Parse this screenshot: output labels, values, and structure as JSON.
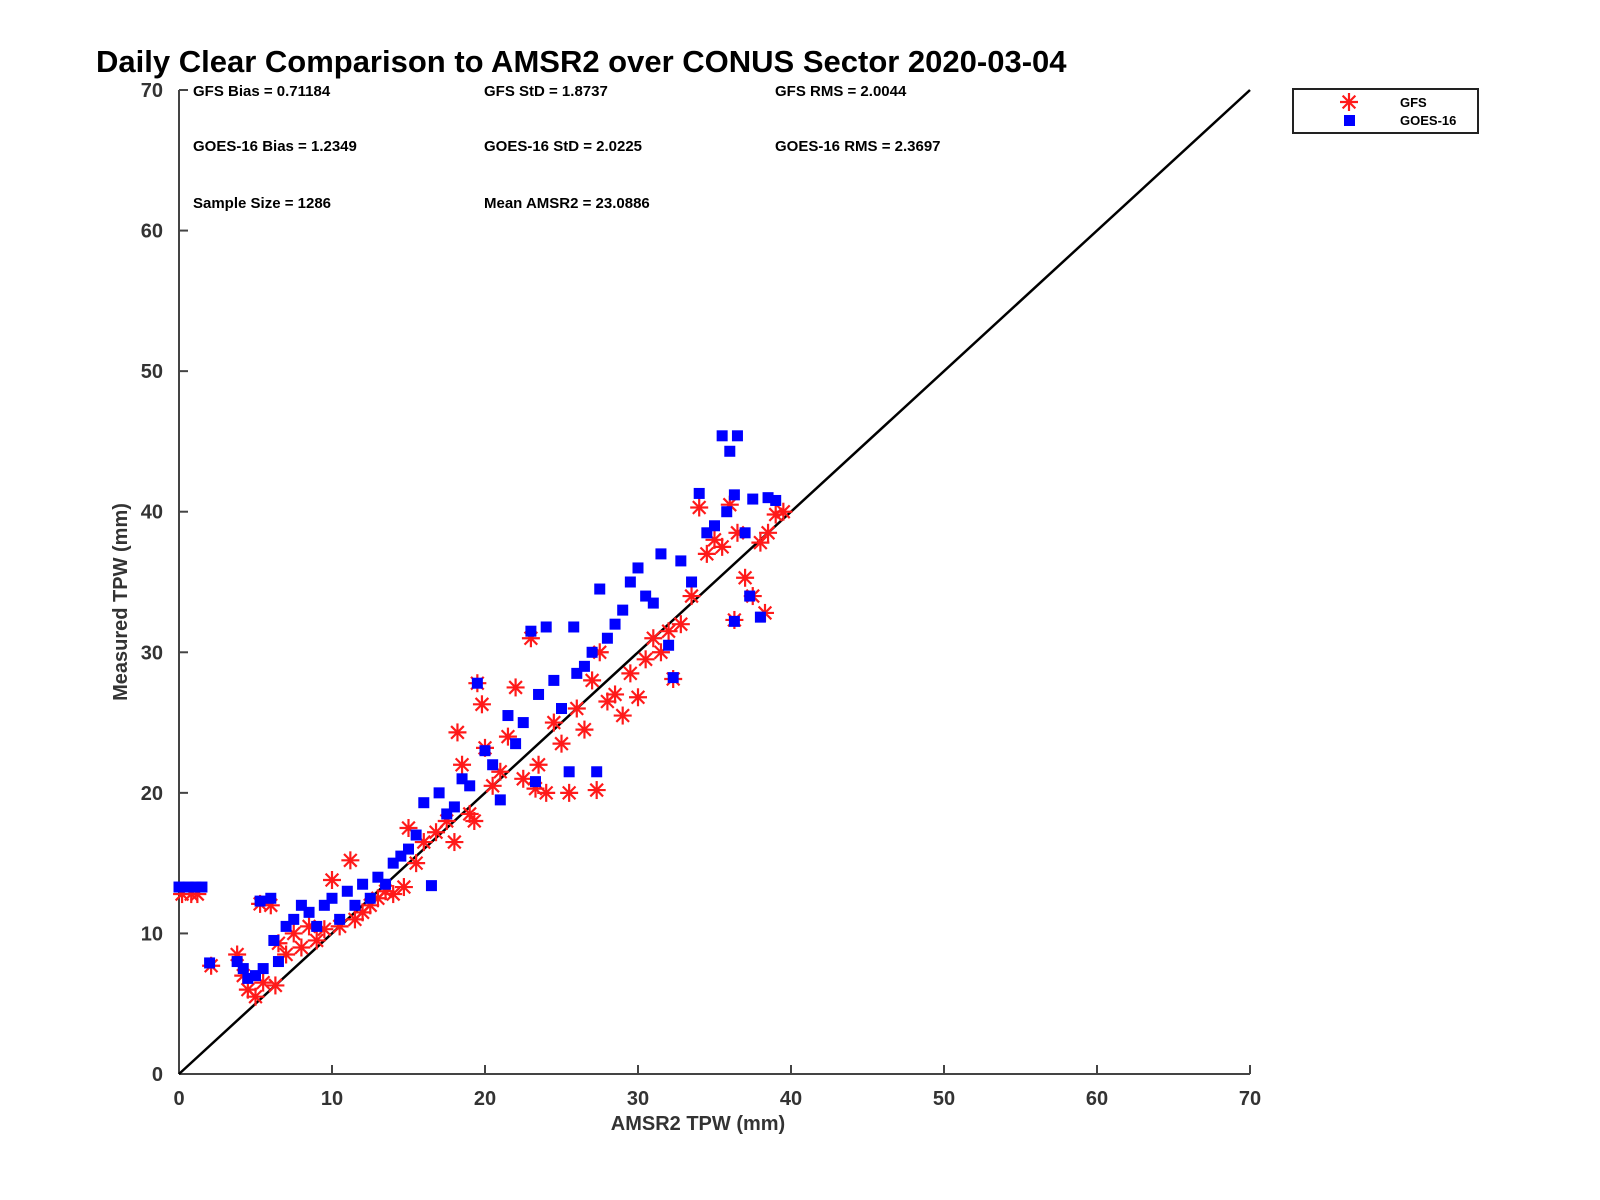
{
  "chart_data": {
    "type": "scatter",
    "title": "Daily Clear Comparison to AMSR2 over CONUS Sector 2020-03-04",
    "xlabel": "AMSR2 TPW (mm)",
    "ylabel": "Measured TPW (mm)",
    "xlim": [
      0,
      70
    ],
    "ylim": [
      0,
      70
    ],
    "xticks": [
      "0",
      "10",
      "20",
      "30",
      "40",
      "50",
      "60",
      "70"
    ],
    "yticks": [
      "0",
      "10",
      "20",
      "30",
      "40",
      "50",
      "60",
      "70"
    ],
    "grid": false,
    "legend_position": "top-right (outside plot)",
    "reference_line": {
      "x": [
        0,
        70
      ],
      "y": [
        0,
        70
      ]
    },
    "annotations": [
      "GFS Bias = 0.71184",
      "GFS StD = 1.8737",
      "GFS RMS = 2.0044",
      "GOES-16 Bias = 1.2349",
      "GOES-16 StD = 2.0225",
      "GOES-16 RMS = 2.3697",
      "Sample Size = 1286",
      "Mean AMSR2 = 23.0886"
    ],
    "series": [
      {
        "name": "GFS",
        "marker": "asterisk",
        "color": "#ff1a1a",
        "points": [
          [
            0.2,
            12.8
          ],
          [
            0.8,
            12.8
          ],
          [
            1.2,
            12.8
          ],
          [
            2.1,
            7.7
          ],
          [
            3.8,
            8.5
          ],
          [
            4.2,
            7.0
          ],
          [
            4.5,
            6.0
          ],
          [
            5.0,
            5.5
          ],
          [
            5.3,
            12.1
          ],
          [
            5.5,
            6.5
          ],
          [
            6.0,
            12.0
          ],
          [
            6.3,
            6.3
          ],
          [
            6.5,
            9.3
          ],
          [
            7.0,
            8.5
          ],
          [
            7.5,
            10.0
          ],
          [
            8.0,
            9.0
          ],
          [
            8.5,
            10.5
          ],
          [
            9.0,
            9.5
          ],
          [
            9.5,
            10.3
          ],
          [
            10.0,
            13.8
          ],
          [
            10.5,
            10.5
          ],
          [
            11.2,
            15.2
          ],
          [
            11.5,
            11.0
          ],
          [
            12.0,
            11.5
          ],
          [
            12.5,
            12.0
          ],
          [
            13.0,
            12.5
          ],
          [
            13.5,
            13.0
          ],
          [
            14.0,
            12.8
          ],
          [
            14.7,
            13.3
          ],
          [
            15.0,
            17.5
          ],
          [
            15.5,
            15.0
          ],
          [
            16.0,
            16.5
          ],
          [
            16.8,
            17.2
          ],
          [
            17.5,
            18.0
          ],
          [
            18.0,
            16.5
          ],
          [
            18.2,
            24.3
          ],
          [
            18.5,
            22.0
          ],
          [
            19.0,
            18.5
          ],
          [
            19.3,
            18.0
          ],
          [
            19.5,
            27.8
          ],
          [
            19.8,
            26.3
          ],
          [
            20.0,
            23.2
          ],
          [
            20.5,
            20.5
          ],
          [
            21.0,
            21.5
          ],
          [
            21.5,
            24.0
          ],
          [
            22.0,
            27.5
          ],
          [
            22.5,
            21.0
          ],
          [
            23.0,
            31.0
          ],
          [
            23.3,
            20.3
          ],
          [
            23.5,
            22.0
          ],
          [
            24.0,
            20.0
          ],
          [
            24.5,
            25.0
          ],
          [
            25.0,
            23.5
          ],
          [
            25.5,
            20.0
          ],
          [
            26.0,
            26.0
          ],
          [
            26.5,
            24.5
          ],
          [
            27.0,
            28.0
          ],
          [
            27.3,
            20.2
          ],
          [
            27.5,
            30.0
          ],
          [
            28.0,
            26.5
          ],
          [
            28.5,
            27.0
          ],
          [
            29.0,
            25.5
          ],
          [
            29.5,
            28.5
          ],
          [
            30.0,
            26.8
          ],
          [
            30.5,
            29.5
          ],
          [
            31.0,
            31.0
          ],
          [
            31.5,
            30.0
          ],
          [
            32.0,
            31.5
          ],
          [
            32.3,
            28.1
          ],
          [
            32.8,
            32.0
          ],
          [
            33.5,
            34.0
          ],
          [
            34.0,
            40.3
          ],
          [
            34.5,
            37.0
          ],
          [
            35.0,
            38.0
          ],
          [
            35.5,
            37.5
          ],
          [
            36.0,
            40.5
          ],
          [
            36.3,
            32.3
          ],
          [
            36.5,
            38.5
          ],
          [
            37.0,
            35.3
          ],
          [
            37.5,
            34.0
          ],
          [
            38.0,
            37.8
          ],
          [
            38.3,
            32.8
          ],
          [
            38.5,
            38.5
          ],
          [
            39.0,
            39.8
          ],
          [
            39.5,
            40.0
          ]
        ]
      },
      {
        "name": "GOES-16",
        "marker": "square",
        "color": "#0000ff",
        "points": [
          [
            0.0,
            13.3
          ],
          [
            0.6,
            13.3
          ],
          [
            1.1,
            13.3
          ],
          [
            1.5,
            13.3
          ],
          [
            2.0,
            7.9
          ],
          [
            3.8,
            8.0
          ],
          [
            4.2,
            7.5
          ],
          [
            4.5,
            6.8
          ],
          [
            5.0,
            7.0
          ],
          [
            5.3,
            12.3
          ],
          [
            5.5,
            7.5
          ],
          [
            6.0,
            12.5
          ],
          [
            6.2,
            9.5
          ],
          [
            6.5,
            8.0
          ],
          [
            7.0,
            10.5
          ],
          [
            7.5,
            11.0
          ],
          [
            8.0,
            12.0
          ],
          [
            8.5,
            11.5
          ],
          [
            9.0,
            10.5
          ],
          [
            9.5,
            12.0
          ],
          [
            10.0,
            12.5
          ],
          [
            10.5,
            11.0
          ],
          [
            11.0,
            13.0
          ],
          [
            11.5,
            12.0
          ],
          [
            12.0,
            13.5
          ],
          [
            12.5,
            12.5
          ],
          [
            13.0,
            14.0
          ],
          [
            13.5,
            13.5
          ],
          [
            14.0,
            15.0
          ],
          [
            14.5,
            15.5
          ],
          [
            15.0,
            16.0
          ],
          [
            15.5,
            17.0
          ],
          [
            16.0,
            19.3
          ],
          [
            16.5,
            13.4
          ],
          [
            17.0,
            20.0
          ],
          [
            17.5,
            18.5
          ],
          [
            18.0,
            19.0
          ],
          [
            18.5,
            21.0
          ],
          [
            19.0,
            20.5
          ],
          [
            19.5,
            27.8
          ],
          [
            20.0,
            23.0
          ],
          [
            20.5,
            22.0
          ],
          [
            21.0,
            19.5
          ],
          [
            21.5,
            25.5
          ],
          [
            22.0,
            23.5
          ],
          [
            22.5,
            25.0
          ],
          [
            23.0,
            31.5
          ],
          [
            23.3,
            20.8
          ],
          [
            23.5,
            27.0
          ],
          [
            24.0,
            31.8
          ],
          [
            24.5,
            28.0
          ],
          [
            25.0,
            26.0
          ],
          [
            25.5,
            21.5
          ],
          [
            25.8,
            31.8
          ],
          [
            26.0,
            28.5
          ],
          [
            26.5,
            29.0
          ],
          [
            27.0,
            30.0
          ],
          [
            27.3,
            21.5
          ],
          [
            27.5,
            34.5
          ],
          [
            28.0,
            31.0
          ],
          [
            28.5,
            32.0
          ],
          [
            29.0,
            33.0
          ],
          [
            29.5,
            35.0
          ],
          [
            30.0,
            36.0
          ],
          [
            30.5,
            34.0
          ],
          [
            31.0,
            33.5
          ],
          [
            31.5,
            37.0
          ],
          [
            32.0,
            30.5
          ],
          [
            32.3,
            28.2
          ],
          [
            32.8,
            36.5
          ],
          [
            33.5,
            35.0
          ],
          [
            34.0,
            41.3
          ],
          [
            34.5,
            38.5
          ],
          [
            35.0,
            39.0
          ],
          [
            35.5,
            45.4
          ],
          [
            35.8,
            40.0
          ],
          [
            36.0,
            44.3
          ],
          [
            36.3,
            41.2
          ],
          [
            36.3,
            32.2
          ],
          [
            36.5,
            45.4
          ],
          [
            37.0,
            38.5
          ],
          [
            37.3,
            34.0
          ],
          [
            37.5,
            40.9
          ],
          [
            38.0,
            32.5
          ],
          [
            38.5,
            41.0
          ],
          [
            39.0,
            40.8
          ]
        ]
      }
    ]
  },
  "legend": {
    "entries": [
      {
        "label": "GFS",
        "color": "#ff1a1a",
        "icon": "asterisk-marker-icon"
      },
      {
        "label": "GOES-16",
        "color": "#0000ff",
        "icon": "square-marker-icon"
      }
    ]
  }
}
